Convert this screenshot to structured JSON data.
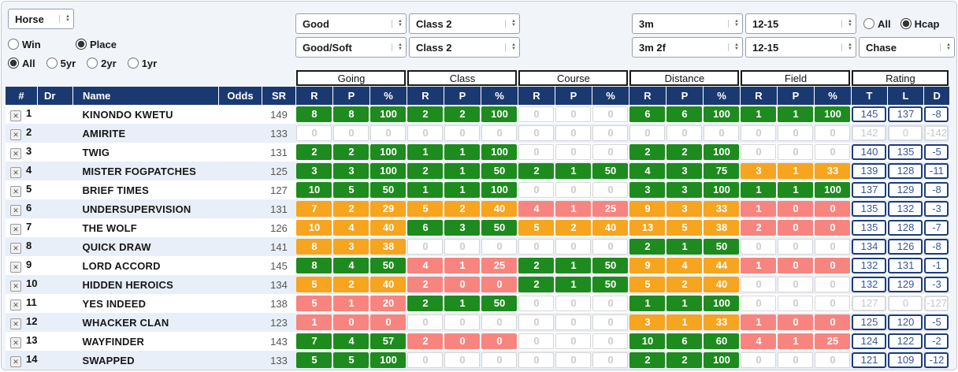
{
  "filters": {
    "horse": "Horse",
    "bet_type": {
      "options": [
        "Win",
        "Place"
      ],
      "selected": "Place"
    },
    "age": {
      "options": [
        "All",
        "5yr",
        "2yr",
        "1yr"
      ],
      "selected": "All"
    },
    "hcap": {
      "options": [
        "All",
        "Hcap"
      ],
      "selected": "Hcap"
    },
    "going_row1": "Good",
    "going_row2": "Good/Soft",
    "class_row1": "Class 2",
    "class_row2": "Class 2",
    "distance_row1": "3m",
    "distance_row2": "3m 2f",
    "field_row1": "12-15",
    "field_row2": "12-15",
    "race_type": "Chase"
  },
  "colors": {
    "header_navy": "#1b3971",
    "green": "#1e8b1e",
    "orange": "#f7a41f",
    "red": "#f8847f",
    "rating_border": "#1d3c78"
  },
  "table": {
    "groups": [
      "Going",
      "Class",
      "Course",
      "Distance",
      "Field",
      "Rating"
    ],
    "left_headers": [
      "#",
      "Dr",
      "Name",
      "Odds",
      "SR"
    ],
    "stat_headers": [
      "R",
      "P",
      "%"
    ],
    "rating_headers": [
      "T",
      "L",
      "D"
    ],
    "remove_glyph": "✕",
    "rows": [
      {
        "n": "1",
        "name": "KINONDO KWETU",
        "sr": "149",
        "stats": [
          [
            "8",
            "8",
            "100",
            "g"
          ],
          [
            "2",
            "2",
            "100",
            "g"
          ],
          [
            "0",
            "0",
            "0",
            "e"
          ],
          [
            "6",
            "6",
            "100",
            "g"
          ],
          [
            "1",
            "1",
            "100",
            "g"
          ]
        ],
        "rating": [
          "145",
          "137",
          "-8"
        ],
        "muted": false
      },
      {
        "n": "2",
        "name": "AMIRITE",
        "sr": "133",
        "stats": [
          [
            "0",
            "0",
            "0",
            "e"
          ],
          [
            "0",
            "0",
            "0",
            "e"
          ],
          [
            "0",
            "0",
            "0",
            "e"
          ],
          [
            "0",
            "0",
            "0",
            "e"
          ],
          [
            "0",
            "0",
            "0",
            "e"
          ]
        ],
        "rating": [
          "142",
          "0",
          "-142"
        ],
        "muted": true
      },
      {
        "n": "3",
        "name": "TWIG",
        "sr": "131",
        "stats": [
          [
            "2",
            "2",
            "100",
            "g"
          ],
          [
            "1",
            "1",
            "100",
            "g"
          ],
          [
            "0",
            "0",
            "0",
            "e"
          ],
          [
            "2",
            "2",
            "100",
            "g"
          ],
          [
            "0",
            "0",
            "0",
            "e"
          ]
        ],
        "rating": [
          "140",
          "135",
          "-5"
        ],
        "muted": false
      },
      {
        "n": "4",
        "name": "MISTER FOGPATCHES",
        "sr": "125",
        "stats": [
          [
            "3",
            "3",
            "100",
            "g"
          ],
          [
            "2",
            "1",
            "50",
            "g"
          ],
          [
            "2",
            "1",
            "50",
            "g"
          ],
          [
            "4",
            "3",
            "75",
            "g"
          ],
          [
            "3",
            "1",
            "33",
            "o"
          ]
        ],
        "rating": [
          "139",
          "128",
          "-11"
        ],
        "muted": false
      },
      {
        "n": "5",
        "name": "BRIEF TIMES",
        "sr": "127",
        "stats": [
          [
            "10",
            "5",
            "50",
            "g"
          ],
          [
            "1",
            "1",
            "100",
            "g"
          ],
          [
            "0",
            "0",
            "0",
            "e"
          ],
          [
            "3",
            "3",
            "100",
            "g"
          ],
          [
            "1",
            "1",
            "100",
            "g"
          ]
        ],
        "rating": [
          "137",
          "129",
          "-8"
        ],
        "muted": false
      },
      {
        "n": "6",
        "name": "UNDERSUPERVISION",
        "sr": "131",
        "stats": [
          [
            "7",
            "2",
            "29",
            "o"
          ],
          [
            "5",
            "2",
            "40",
            "o"
          ],
          [
            "4",
            "1",
            "25",
            "r"
          ],
          [
            "9",
            "3",
            "33",
            "o"
          ],
          [
            "1",
            "0",
            "0",
            "r"
          ]
        ],
        "rating": [
          "135",
          "132",
          "-3"
        ],
        "muted": false
      },
      {
        "n": "7",
        "name": "THE WOLF",
        "sr": "126",
        "stats": [
          [
            "10",
            "4",
            "40",
            "o"
          ],
          [
            "6",
            "3",
            "50",
            "g"
          ],
          [
            "5",
            "2",
            "40",
            "o"
          ],
          [
            "13",
            "5",
            "38",
            "o"
          ],
          [
            "2",
            "0",
            "0",
            "r"
          ]
        ],
        "rating": [
          "135",
          "128",
          "-7"
        ],
        "muted": false
      },
      {
        "n": "8",
        "name": "QUICK DRAW",
        "sr": "141",
        "stats": [
          [
            "8",
            "3",
            "38",
            "o"
          ],
          [
            "0",
            "0",
            "0",
            "e"
          ],
          [
            "0",
            "0",
            "0",
            "e"
          ],
          [
            "2",
            "1",
            "50",
            "g"
          ],
          [
            "0",
            "0",
            "0",
            "e"
          ]
        ],
        "rating": [
          "134",
          "126",
          "-8"
        ],
        "muted": false
      },
      {
        "n": "9",
        "name": "LORD ACCORD",
        "sr": "145",
        "stats": [
          [
            "8",
            "4",
            "50",
            "g"
          ],
          [
            "4",
            "1",
            "25",
            "r"
          ],
          [
            "2",
            "1",
            "50",
            "g"
          ],
          [
            "9",
            "4",
            "44",
            "o"
          ],
          [
            "1",
            "0",
            "0",
            "r"
          ]
        ],
        "rating": [
          "132",
          "131",
          "-1"
        ],
        "muted": false
      },
      {
        "n": "10",
        "name": "HIDDEN HEROICS",
        "sr": "134",
        "stats": [
          [
            "5",
            "2",
            "40",
            "o"
          ],
          [
            "2",
            "0",
            "0",
            "r"
          ],
          [
            "2",
            "1",
            "50",
            "g"
          ],
          [
            "5",
            "2",
            "40",
            "o"
          ],
          [
            "0",
            "0",
            "0",
            "e"
          ]
        ],
        "rating": [
          "132",
          "129",
          "-3"
        ],
        "muted": false
      },
      {
        "n": "11",
        "name": "YES INDEED",
        "sr": "138",
        "stats": [
          [
            "5",
            "1",
            "20",
            "r"
          ],
          [
            "2",
            "1",
            "50",
            "g"
          ],
          [
            "0",
            "0",
            "0",
            "e"
          ],
          [
            "1",
            "1",
            "100",
            "g"
          ],
          [
            "0",
            "0",
            "0",
            "e"
          ]
        ],
        "rating": [
          "127",
          "0",
          "-127"
        ],
        "muted": true
      },
      {
        "n": "12",
        "name": "WHACKER CLAN",
        "sr": "123",
        "stats": [
          [
            "1",
            "0",
            "0",
            "r"
          ],
          [
            "0",
            "0",
            "0",
            "e"
          ],
          [
            "0",
            "0",
            "0",
            "e"
          ],
          [
            "3",
            "1",
            "33",
            "o"
          ],
          [
            "1",
            "0",
            "0",
            "r"
          ]
        ],
        "rating": [
          "125",
          "120",
          "-5"
        ],
        "muted": false
      },
      {
        "n": "13",
        "name": "WAYFINDER",
        "sr": "143",
        "stats": [
          [
            "7",
            "4",
            "57",
            "g"
          ],
          [
            "2",
            "0",
            "0",
            "r"
          ],
          [
            "0",
            "0",
            "0",
            "e"
          ],
          [
            "10",
            "6",
            "60",
            "g"
          ],
          [
            "4",
            "1",
            "25",
            "r"
          ]
        ],
        "rating": [
          "124",
          "122",
          "-2"
        ],
        "muted": false
      },
      {
        "n": "14",
        "name": "SWAPPED",
        "sr": "133",
        "stats": [
          [
            "5",
            "5",
            "100",
            "g"
          ],
          [
            "0",
            "0",
            "0",
            "e"
          ],
          [
            "0",
            "0",
            "0",
            "e"
          ],
          [
            "2",
            "2",
            "100",
            "g"
          ],
          [
            "0",
            "0",
            "0",
            "e"
          ]
        ],
        "rating": [
          "121",
          "109",
          "-12"
        ],
        "muted": false
      }
    ]
  }
}
